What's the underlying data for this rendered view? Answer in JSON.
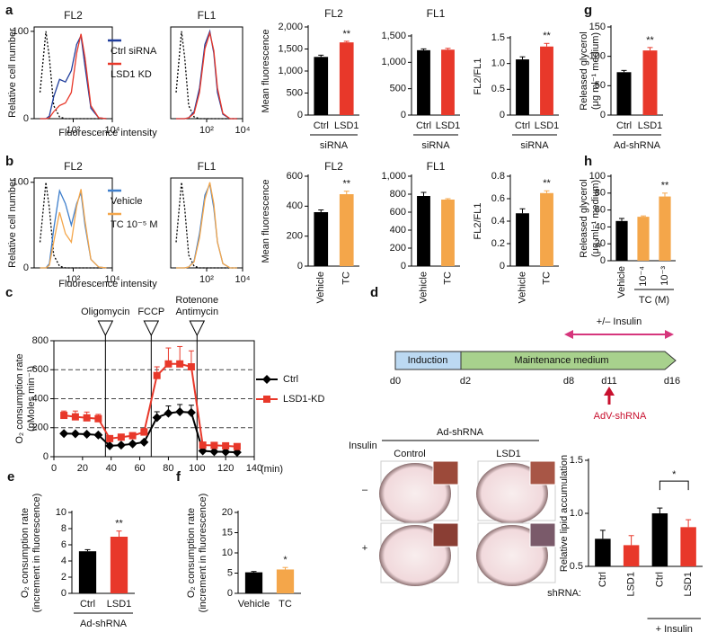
{
  "chart_data": [
    {
      "panel": "a",
      "type": "line",
      "log_x": true,
      "title": "FL2",
      "y_label": [
        "Relative cell number"
      ],
      "x_label": "Fluorescence intensity",
      "x": [
        2,
        4,
        6,
        10,
        20,
        40,
        80,
        150,
        250,
        400,
        800,
        2000,
        5000
      ],
      "series": [
        {
          "color": "#000000",
          "dash": true,
          "values": [
            30,
            100,
            70,
            15,
            2,
            0,
            0,
            0,
            0,
            0,
            0,
            0,
            0
          ]
        },
        {
          "name": "Ctrl siRNA",
          "color": "#1f3d9c",
          "values": [
            0,
            0,
            3,
            25,
            45,
            42,
            55,
            85,
            95,
            60,
            12,
            1,
            0
          ]
        },
        {
          "name": "LSD1 KD",
          "color": "#e8382a",
          "values": [
            0,
            0,
            1,
            8,
            15,
            18,
            30,
            75,
            97,
            70,
            15,
            1,
            0
          ]
        }
      ],
      "legend": "right",
      "xlim": [
        1,
        10000
      ],
      "xticks": [
        {
          "value": 100,
          "label": "10²"
        },
        {
          "value": 10000,
          "label": "10⁴"
        }
      ],
      "ylim": [
        0,
        105
      ],
      "yticks": [
        0,
        100
      ]
    },
    {
      "type": "line",
      "log_x": true,
      "title": "FL1",
      "x": [
        2,
        4,
        6,
        10,
        20,
        40,
        80,
        150,
        250,
        400,
        800,
        2000,
        5000
      ],
      "series": [
        {
          "color": "#000000",
          "dash": true,
          "values": [
            30,
            100,
            70,
            15,
            2,
            0,
            0,
            0,
            0,
            0,
            0,
            0,
            0
          ]
        },
        {
          "color": "#1f3d9c",
          "values": [
            0,
            0,
            0,
            1,
            8,
            35,
            85,
            100,
            75,
            30,
            5,
            0,
            0
          ]
        },
        {
          "color": "#e8382a",
          "values": [
            0,
            0,
            0,
            1,
            6,
            30,
            80,
            98,
            78,
            35,
            6,
            0,
            0
          ]
        }
      ],
      "xlim": [
        1,
        10000
      ],
      "xticks": [
        {
          "value": 100,
          "label": "10²"
        },
        {
          "value": 10000,
          "label": "10⁴"
        }
      ],
      "ylim": [
        0,
        105
      ],
      "yticks": []
    },
    {
      "type": "bar",
      "title": "FL2",
      "y_label": [
        "Mean fluorescence"
      ],
      "categories": [
        "Ctrl",
        "LSD1"
      ],
      "values": [
        1320,
        1650
      ],
      "errors": [
        40,
        25
      ],
      "colors": [
        "#000000",
        "#e8382a"
      ],
      "significance": [
        null,
        "**"
      ],
      "groups": [
        {
          "label": "siRNA",
          "from": 0,
          "to": 1
        }
      ],
      "ylim": [
        0,
        2000
      ],
      "yticks": [
        0,
        500,
        {
          "value": 1000,
          "label": "1,000"
        },
        {
          "value": 1500,
          "label": "1,500"
        },
        {
          "value": 2000,
          "label": "2,000"
        }
      ]
    },
    {
      "type": "bar",
      "title": "FL1",
      "categories": [
        "Ctrl",
        "LSD1"
      ],
      "values": [
        1230,
        1240
      ],
      "errors": [
        25,
        25
      ],
      "colors": [
        "#000000",
        "#e8382a"
      ],
      "groups": [
        {
          "label": "siRNA",
          "from": 0,
          "to": 1
        }
      ],
      "ylim": [
        0,
        1500
      ],
      "yticks": [
        0,
        500,
        {
          "value": 1000,
          "label": "1,000"
        },
        {
          "value": 1500,
          "label": "1,500"
        }
      ]
    },
    {
      "type": "bar",
      "y_label": [
        "FL2/FL1"
      ],
      "categories": [
        "Ctrl",
        "LSD1"
      ],
      "values": [
        1.08,
        1.33
      ],
      "errors": [
        0.05,
        0.06
      ],
      "colors": [
        "#000000",
        "#e8382a"
      ],
      "significance": [
        null,
        "**"
      ],
      "groups": [
        {
          "label": "siRNA",
          "from": 0,
          "to": 1
        }
      ],
      "ylim": [
        0,
        1.5
      ],
      "yticks": [
        0,
        0.5,
        {
          "value": 1.0,
          "label": "1.0"
        },
        1.5
      ]
    },
    {
      "panel": "g",
      "type": "bar",
      "y_label": [
        "Released glycerol",
        "(μg ml⁻¹ medium)"
      ],
      "categories": [
        "Ctrl",
        "LSD1"
      ],
      "values": [
        73,
        110
      ],
      "errors": [
        3,
        5
      ],
      "colors": [
        "#000000",
        "#e8382a"
      ],
      "significance": [
        null,
        "**"
      ],
      "groups": [
        {
          "label": "Ad-shRNA",
          "from": 0,
          "to": 1
        }
      ],
      "ylim": [
        0,
        150
      ],
      "yticks": [
        0,
        50,
        100,
        150
      ]
    },
    {
      "panel": "b",
      "type": "line",
      "log_x": true,
      "title": "FL2",
      "y_label": [
        "Relative cell number"
      ],
      "x_label": "Fluorescence intensity",
      "x": [
        2,
        4,
        6,
        10,
        20,
        40,
        80,
        150,
        250,
        400,
        800,
        2000,
        5000
      ],
      "series": [
        {
          "color": "#000000",
          "dash": true,
          "values": [
            30,
            100,
            70,
            15,
            2,
            0,
            0,
            0,
            0,
            0,
            0,
            0,
            0
          ]
        },
        {
          "name": "Vehicle",
          "color": "#3f7fcc",
          "values": [
            0,
            0,
            5,
            45,
            90,
            75,
            50,
            75,
            88,
            50,
            10,
            1,
            0
          ]
        },
        {
          "name": "TC 10⁻⁵ M",
          "color": "#f4a64a",
          "values": [
            0,
            0,
            3,
            30,
            65,
            40,
            30,
            72,
            92,
            55,
            10,
            1,
            0
          ]
        }
      ],
      "legend": "right",
      "xlim": [
        1,
        10000
      ],
      "xticks": [
        {
          "value": 100,
          "label": "10²"
        },
        {
          "value": 10000,
          "label": "10⁴"
        }
      ],
      "ylim": [
        0,
        105
      ],
      "yticks": [
        0,
        100
      ]
    },
    {
      "type": "line",
      "log_x": true,
      "title": "FL1",
      "x": [
        2,
        4,
        6,
        10,
        20,
        40,
        80,
        150,
        250,
        400,
        800,
        2000,
        5000
      ],
      "series": [
        {
          "color": "#000000",
          "dash": true,
          "values": [
            30,
            100,
            70,
            15,
            2,
            0,
            0,
            0,
            0,
            0,
            0,
            0,
            0
          ]
        },
        {
          "color": "#3f7fcc",
          "values": [
            0,
            0,
            0,
            1,
            8,
            40,
            85,
            98,
            70,
            30,
            5,
            0,
            0
          ]
        },
        {
          "color": "#f4a64a",
          "values": [
            0,
            0,
            0,
            1,
            7,
            35,
            80,
            100,
            75,
            30,
            5,
            0,
            0
          ]
        }
      ],
      "xlim": [
        1,
        10000
      ],
      "xticks": [
        {
          "value": 100,
          "label": "10²"
        },
        {
          "value": 10000,
          "label": "10⁴"
        }
      ],
      "ylim": [
        0,
        105
      ],
      "yticks": []
    },
    {
      "type": "bar",
      "title": "FL2",
      "y_label": [
        "Mean fluorescence"
      ],
      "categories": [
        "Vehicle",
        "TC"
      ],
      "values": [
        360,
        480
      ],
      "errors": [
        15,
        20
      ],
      "colors": [
        "#000000",
        "#f4a64a"
      ],
      "significance": [
        null,
        "**"
      ],
      "rotate_labels": true,
      "ylim": [
        0,
        600
      ],
      "yticks": [
        0,
        200,
        400,
        600
      ]
    },
    {
      "type": "bar",
      "title": "FL1",
      "categories": [
        "Vehicle",
        "TC"
      ],
      "values": [
        780,
        740
      ],
      "errors": [
        40,
        10
      ],
      "colors": [
        "#000000",
        "#f4a64a"
      ],
      "rotate_labels": true,
      "ylim": [
        0,
        1000
      ],
      "yticks": [
        0,
        200,
        400,
        600,
        800,
        {
          "value": 1000,
          "label": "1,000"
        }
      ]
    },
    {
      "type": "bar",
      "y_label": [
        "FL2/FL1"
      ],
      "categories": [
        "Vehicle",
        "TC"
      ],
      "values": [
        0.47,
        0.65
      ],
      "errors": [
        0.04,
        0.02
      ],
      "colors": [
        "#000000",
        "#f4a64a"
      ],
      "significance": [
        null,
        "**"
      ],
      "rotate_labels": true,
      "ylim": [
        0,
        0.8
      ],
      "yticks": [
        0,
        0.2,
        0.4,
        0.6,
        0.8
      ]
    },
    {
      "panel": "h",
      "type": "bar",
      "y_label": [
        "Released glycerol",
        "(μg ml⁻¹ medium)"
      ],
      "categories": [
        "Vehicle",
        "10⁻⁴",
        "10⁻³"
      ],
      "values": [
        47,
        52,
        76
      ],
      "errors": [
        3,
        1,
        4
      ],
      "colors": [
        "#000000",
        "#f4a64a",
        "#f4a64a"
      ],
      "significance": [
        null,
        null,
        "**"
      ],
      "rotate_labels": true,
      "groups": [
        {
          "label": "TC (M)",
          "from": 1,
          "to": 2
        }
      ],
      "ylim": [
        0,
        100
      ],
      "yticks": [
        0,
        20,
        40,
        60,
        80,
        100
      ]
    },
    {
      "panel": "c",
      "type": "line",
      "y_label": [
        "O₂ consumption rate",
        "(pMoles min⁻¹)"
      ],
      "x_label": "(min)",
      "grid": true,
      "legend": "right",
      "x": [
        7,
        15,
        23,
        31,
        39,
        47,
        55,
        63,
        72,
        80,
        88,
        96,
        104,
        112,
        120,
        128
      ],
      "series": [
        {
          "name": "Ctrl",
          "color": "#000000",
          "marker": "diamond",
          "values": [
            160,
            158,
            155,
            150,
            75,
            80,
            88,
            100,
            270,
            300,
            310,
            305,
            40,
            35,
            33,
            30
          ],
          "errors": [
            10,
            10,
            10,
            10,
            10,
            10,
            10,
            10,
            40,
            50,
            50,
            50,
            5,
            5,
            5,
            5
          ]
        },
        {
          "name": "LSD1-KD",
          "color": "#e8382a",
          "marker": "square",
          "values": [
            285,
            275,
            268,
            262,
            125,
            135,
            145,
            170,
            560,
            640,
            640,
            620,
            80,
            78,
            75,
            70
          ],
          "errors": [
            30,
            40,
            40,
            30,
            20,
            20,
            20,
            25,
            60,
            110,
            120,
            110,
            15,
            15,
            10,
            10
          ]
        }
      ],
      "injections": [
        {
          "label": [
            "Oligomycin"
          ],
          "x": 36
        },
        {
          "label": [
            "FCCP"
          ],
          "x": 68
        },
        {
          "label": [
            "Rotenone",
            "Antimycin"
          ],
          "x": 100
        }
      ],
      "xlim": [
        0,
        140
      ],
      "xticks": [
        0,
        20,
        40,
        60,
        80,
        100,
        120,
        140
      ],
      "ylim": [
        0,
        800
      ],
      "yticks": [
        0,
        200,
        400,
        600,
        800
      ]
    },
    {
      "panel": "e",
      "type": "bar",
      "y_label": [
        "O₂ consumption rate",
        "(increment in fluorescence)"
      ],
      "categories": [
        "Ctrl",
        "LSD1"
      ],
      "values": [
        5.2,
        7.0
      ],
      "errors": [
        0.2,
        0.7
      ],
      "colors": [
        "#000000",
        "#e8382a"
      ],
      "significance": [
        null,
        "**"
      ],
      "groups": [
        {
          "label": "Ad-shRNA",
          "from": 0,
          "to": 1
        }
      ],
      "ylim": [
        0,
        10
      ],
      "yticks": [
        0,
        2,
        4,
        6,
        8,
        10
      ]
    },
    {
      "panel": "f",
      "type": "bar",
      "y_label": [
        "O₂ consumption rate",
        "(increment in fluorescence)"
      ],
      "categories": [
        "Vehicle",
        "TC"
      ],
      "values": [
        5.2,
        5.9
      ],
      "errors": [
        0.2,
        0.5
      ],
      "colors": [
        "#000000",
        "#f4a64a"
      ],
      "significance": [
        null,
        "*"
      ],
      "ylim": [
        0,
        20
      ],
      "yticks": [
        0,
        5,
        10,
        15,
        20
      ]
    },
    {
      "type": "bar",
      "y_label": [
        "Relative lipid accumulation"
      ],
      "category_prefix": "shRNA:",
      "categories": [
        "Ctrl",
        "LSD1",
        "Ctrl",
        "LSD1"
      ],
      "values": [
        0.76,
        0.7,
        1.0,
        0.87
      ],
      "errors": [
        0.08,
        0.09,
        0.05,
        0.07
      ],
      "colors": [
        "#000000",
        "#e8382a",
        "#000000",
        "#e8382a"
      ],
      "rotate_labels": true,
      "significance_bracket": {
        "text": "*",
        "from": 2,
        "to": 3
      },
      "groups": [
        {
          "label": "+ Insulin",
          "from": 2,
          "to": 3
        }
      ],
      "ylim": [
        0.5,
        1.5
      ],
      "yticks": [
        0.5,
        {
          "value": 1.0,
          "label": "1.0"
        },
        1.5
      ]
    }
  ],
  "diagram": {
    "panel": "d",
    "timeline": {
      "stages": [
        "Induction",
        "Maintenance medium"
      ],
      "days": [
        "d0",
        "d2",
        "d8",
        "d11",
        "d16"
      ],
      "insulin": "+/– Insulin",
      "injection": "AdV-shRNA"
    },
    "images": {
      "group": "Ad-shRNA",
      "columns": [
        "Control",
        "LSD1"
      ],
      "row_header": "Insulin",
      "rows": [
        "–",
        "+"
      ]
    }
  }
}
